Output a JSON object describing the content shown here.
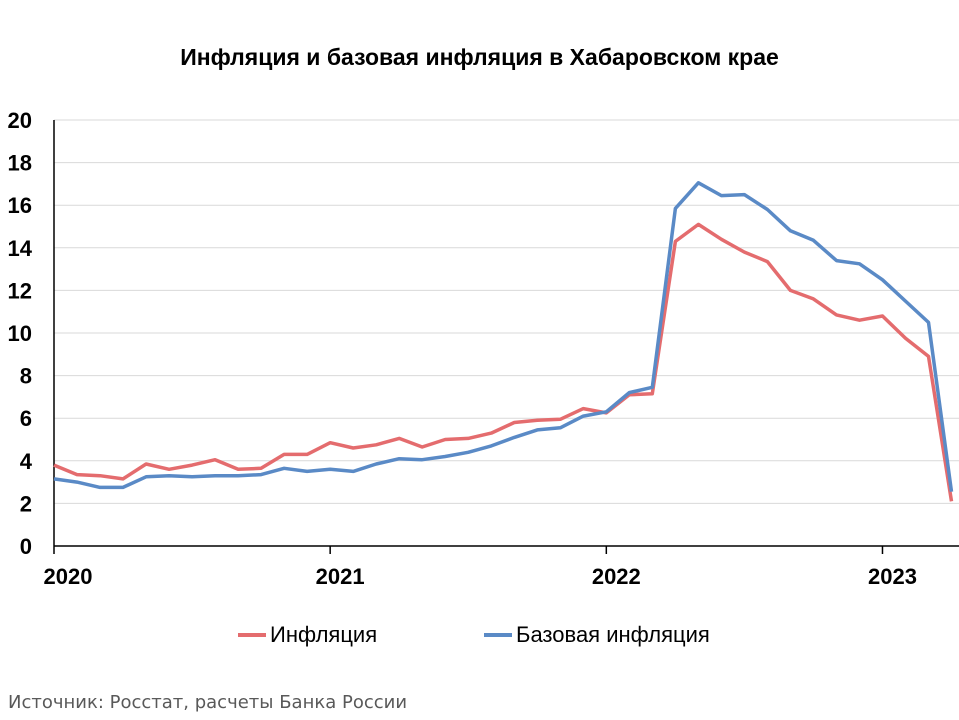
{
  "chart_data": {
    "type": "line",
    "title": "Инфляция и базовая инфляция в Хабаровском крае",
    "xlabel": "",
    "ylabel": "",
    "ylim": [
      0,
      20
    ],
    "yticks": [
      "0",
      "2",
      "4",
      "6",
      "8",
      "10",
      "12",
      "14",
      "16",
      "18",
      "20"
    ],
    "xticks": [
      "2020",
      "2021",
      "2022",
      "2023"
    ],
    "x_month_index_range": [
      0,
      39
    ],
    "grid": true,
    "legend_position": "bottom",
    "series": [
      {
        "name": "Инфляция",
        "color": "#e46c6e",
        "values": [
          3.8,
          3.35,
          3.3,
          3.15,
          3.85,
          3.6,
          3.8,
          4.05,
          3.6,
          3.65,
          4.3,
          4.3,
          4.85,
          4.6,
          4.75,
          5.05,
          4.65,
          5.0,
          5.05,
          5.3,
          5.8,
          5.9,
          5.95,
          6.45,
          6.25,
          7.1,
          7.15,
          14.3,
          15.1,
          14.4,
          13.8,
          13.35,
          12.0,
          11.6,
          10.85,
          10.6,
          10.8,
          9.75,
          8.9,
          2.1
        ]
      },
      {
        "name": "Базовая инфляция",
        "color": "#5a8ac6",
        "values": [
          3.15,
          3.0,
          2.75,
          2.75,
          3.25,
          3.3,
          3.25,
          3.3,
          3.3,
          3.35,
          3.65,
          3.5,
          3.6,
          3.5,
          3.85,
          4.1,
          4.05,
          4.2,
          4.4,
          4.7,
          5.1,
          5.45,
          5.55,
          6.1,
          6.3,
          7.2,
          7.45,
          15.85,
          17.05,
          16.45,
          16.5,
          15.8,
          14.8,
          14.35,
          13.4,
          13.25,
          12.5,
          11.5,
          10.5,
          2.55
        ]
      }
    ]
  },
  "source": "Источник: Росстат, расчеты Банка России"
}
